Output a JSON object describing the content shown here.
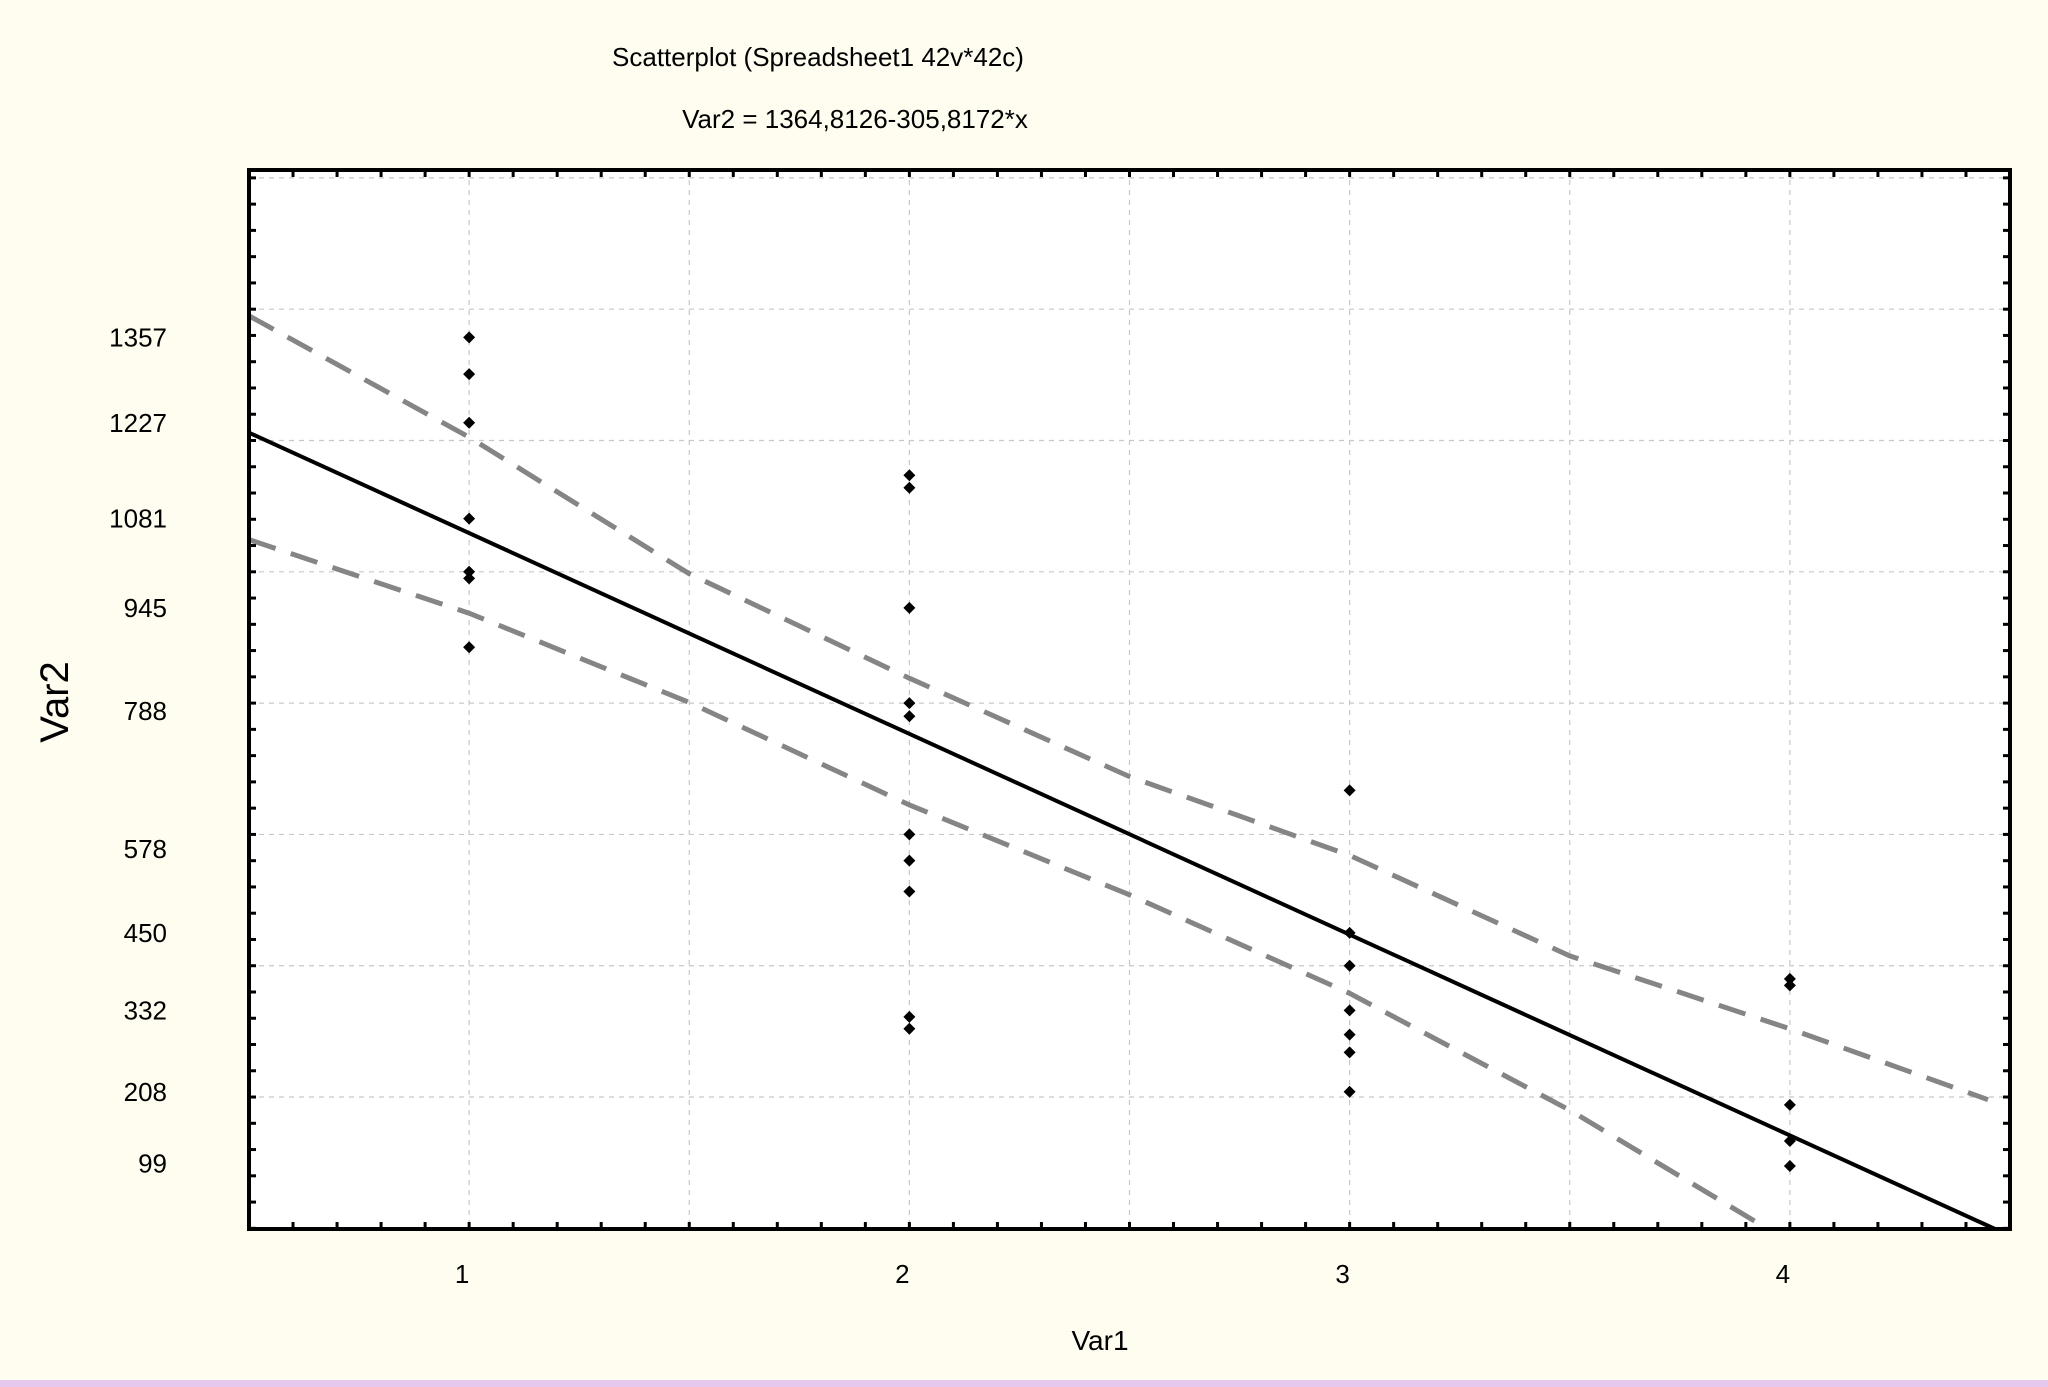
{
  "chart_data": {
    "type": "scatter",
    "title": "Scatterplot (Spreadsheet1 42v*42c)",
    "subtitle": "Var2 = 1364,8126-305,8172*x",
    "xlabel": "Var1",
    "ylabel": "Var2",
    "xlim": [
      0.5,
      4.5
    ],
    "ylim": [
      -1,
      1612
    ],
    "x_ticks": [
      1,
      2,
      3,
      4
    ],
    "y_tick_labels": [
      "1357",
      "1227",
      "1081",
      "945",
      "788",
      "578",
      "450",
      "332",
      "208",
      "99"
    ],
    "grid": true,
    "fit_line": {
      "intercept": 1364.8126,
      "slope": -305.8172
    },
    "confidence_band": {
      "upper": [
        [
          0.5,
          1390
        ],
        [
          1,
          1205
        ],
        [
          1.5,
          997
        ],
        [
          2,
          838
        ],
        [
          2.5,
          688
        ],
        [
          3,
          568
        ],
        [
          3.5,
          415
        ],
        [
          4,
          304
        ],
        [
          4.45,
          196
        ]
      ],
      "lower": [
        [
          0.5,
          1049
        ],
        [
          1,
          937
        ],
        [
          1.5,
          801
        ],
        [
          2,
          645
        ],
        [
          2.5,
          508
        ],
        [
          3,
          358
        ],
        [
          3.5,
          180
        ],
        [
          3.95,
          -1
        ]
      ]
    },
    "points": [
      {
        "x": 1,
        "y": 1357
      },
      {
        "x": 1,
        "y": 1301
      },
      {
        "x": 1,
        "y": 1227
      },
      {
        "x": 1,
        "y": 1081
      },
      {
        "x": 1,
        "y": 1000
      },
      {
        "x": 1,
        "y": 990
      },
      {
        "x": 1,
        "y": 885
      },
      {
        "x": 2,
        "y": 1147
      },
      {
        "x": 2,
        "y": 1128
      },
      {
        "x": 2,
        "y": 945
      },
      {
        "x": 2,
        "y": 800
      },
      {
        "x": 2,
        "y": 780
      },
      {
        "x": 2,
        "y": 600
      },
      {
        "x": 2,
        "y": 560
      },
      {
        "x": 2,
        "y": 513
      },
      {
        "x": 2,
        "y": 322
      },
      {
        "x": 2,
        "y": 304
      },
      {
        "x": 3,
        "y": 667
      },
      {
        "x": 3,
        "y": 450
      },
      {
        "x": 3,
        "y": 400
      },
      {
        "x": 3,
        "y": 332
      },
      {
        "x": 3,
        "y": 295
      },
      {
        "x": 3,
        "y": 268
      },
      {
        "x": 3,
        "y": 208
      },
      {
        "x": 4,
        "y": 380
      },
      {
        "x": 4,
        "y": 370
      },
      {
        "x": 4,
        "y": 188
      },
      {
        "x": 4,
        "y": 133
      },
      {
        "x": 4,
        "y": 95
      }
    ]
  }
}
